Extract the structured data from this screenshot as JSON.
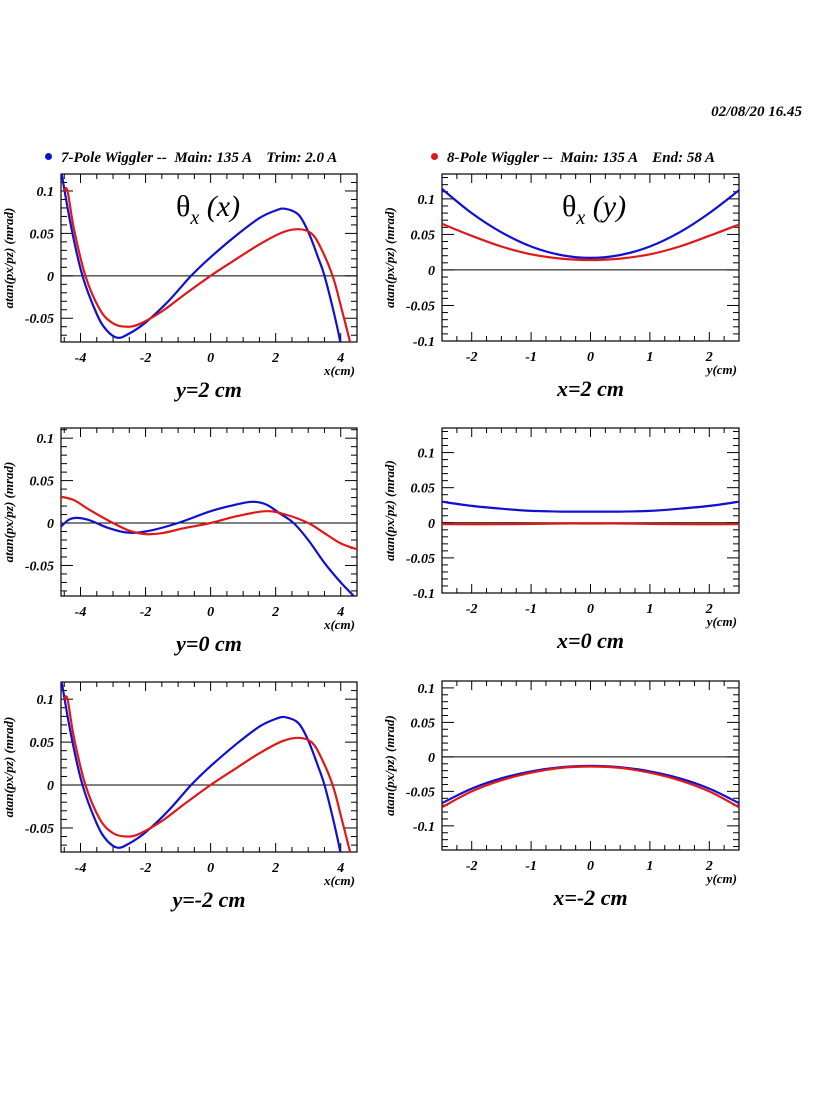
{
  "header": {
    "timestamp": "02/08/20   16.45"
  },
  "legend": [
    {
      "label": "7-Pole Wiggler --  Main: 135 A    Trim: 2.0 A",
      "color": "#1010d0"
    },
    {
      "label": "8-Pole Wiggler --  Main: 135 A    End: 58 A",
      "color": "#e01818"
    }
  ],
  "colors": {
    "seven_pole": "#1010d0",
    "eight_pole": "#e01818",
    "axis": "#000000"
  },
  "chart_data": [
    {
      "type": "line",
      "id": "theta_x_vs_x_y2",
      "title": "θx (x)",
      "caption": "y=2 cm",
      "xlabel": "x(cm)",
      "ylabel": "atan(px/pz) (mrad)",
      "xlim": [
        -4.6,
        4.5
      ],
      "ylim": [
        -0.078,
        0.12
      ],
      "xticks": [
        -4,
        -2,
        0,
        2,
        4
      ],
      "yticks": [
        -0.05,
        0,
        0.05,
        0.1
      ],
      "ytick_labels": [
        "-0.05",
        "0",
        "0.05",
        "0.1"
      ],
      "zero_line": true,
      "series": [
        {
          "name": "7-Pole Wiggler",
          "x": [
            -4.6,
            -4.3,
            -3.94,
            -3.5,
            -3.2,
            -2.86,
            -2.5,
            -2.0,
            -1.3,
            -0.6,
            0,
            0.8,
            1.5,
            2.0,
            2.3,
            2.7,
            3.0,
            3.3,
            3.5,
            3.8,
            4.0
          ],
          "y": [
            0.125,
            0.06,
            0.0,
            -0.045,
            -0.064,
            -0.073,
            -0.068,
            -0.055,
            -0.03,
            0.0,
            0.022,
            0.048,
            0.068,
            0.077,
            0.079,
            0.072,
            0.052,
            0.022,
            0.0,
            -0.045,
            -0.08
          ]
        },
        {
          "name": "8-Pole Wiggler",
          "x": [
            -4.5,
            -4.4,
            -4.2,
            -3.85,
            -3.4,
            -3.0,
            -2.6,
            -2.2,
            -1.5,
            -0.8,
            0,
            0.8,
            1.5,
            2.2,
            2.7,
            3.1,
            3.4,
            3.75,
            4.0,
            4.3
          ],
          "y": [
            0.1,
            0.1,
            0.055,
            0.0,
            -0.04,
            -0.056,
            -0.06,
            -0.057,
            -0.042,
            -0.022,
            0.0,
            0.02,
            0.037,
            0.051,
            0.055,
            0.05,
            0.032,
            0.0,
            -0.035,
            -0.08
          ]
        }
      ]
    },
    {
      "type": "line",
      "id": "theta_x_vs_y_x2",
      "title": "θx (y)",
      "caption": "x=2 cm",
      "xlabel": "y(cm)",
      "ylabel": "atan(px/pz) (mrad)",
      "xlim": [
        -2.5,
        2.5
      ],
      "ylim": [
        -0.1,
        0.135
      ],
      "xticks": [
        -2,
        -1,
        0,
        1,
        2
      ],
      "yticks": [
        -0.1,
        -0.05,
        0,
        0.05,
        0.1
      ],
      "ytick_labels": [
        "-0.1",
        "-0.05",
        "0",
        "0.05",
        "0.1"
      ],
      "zero_line": true,
      "series": [
        {
          "name": "7-Pole Wiggler",
          "x": [
            -2.5,
            -2.0,
            -1.5,
            -1.0,
            -0.5,
            0,
            0.5,
            1.0,
            1.5,
            2.0,
            2.5
          ],
          "y": [
            0.114,
            0.08,
            0.053,
            0.033,
            0.021,
            0.017,
            0.021,
            0.033,
            0.053,
            0.08,
            0.112
          ]
        },
        {
          "name": "8-Pole Wiggler",
          "x": [
            -2.5,
            -2.0,
            -1.5,
            -1.0,
            -0.5,
            0,
            0.5,
            1.0,
            1.5,
            2.0,
            2.5
          ],
          "y": [
            0.065,
            0.048,
            0.033,
            0.022,
            0.016,
            0.014,
            0.016,
            0.022,
            0.033,
            0.048,
            0.064
          ]
        }
      ]
    },
    {
      "type": "line",
      "id": "theta_x_vs_x_y0",
      "title": "",
      "caption": "y=0 cm",
      "xlabel": "x(cm)",
      "ylabel": "atan(px/pz) (mrad)",
      "xlim": [
        -4.6,
        4.5
      ],
      "ylim": [
        -0.086,
        0.112
      ],
      "xticks": [
        -4,
        -2,
        0,
        2,
        4
      ],
      "yticks": [
        -0.05,
        0,
        0.05,
        0.1
      ],
      "ytick_labels": [
        "-0.05",
        "0",
        "0.05",
        "0.1"
      ],
      "zero_line": true,
      "series": [
        {
          "name": "7-Pole Wiggler",
          "x": [
            -4.6,
            -4.35,
            -4.1,
            -3.7,
            -3.2,
            -2.6,
            -2.0,
            -1.0,
            0,
            0.7,
            1.25,
            1.7,
            2.1,
            2.55,
            3.0,
            3.5,
            4.0,
            4.4
          ],
          "y": [
            -0.004,
            0.004,
            0.006,
            0.003,
            -0.005,
            -0.011,
            -0.01,
            0.0,
            0.014,
            0.021,
            0.025,
            0.022,
            0.012,
            0.0,
            -0.02,
            -0.047,
            -0.07,
            -0.086
          ]
        },
        {
          "name": "8-Pole Wiggler",
          "x": [
            -4.6,
            -4.2,
            -3.7,
            -3.0,
            -2.5,
            -2.0,
            -1.5,
            -0.8,
            0,
            0.8,
            1.7,
            2.3,
            3.0,
            3.5,
            4.0,
            4.5
          ],
          "y": [
            0.031,
            0.027,
            0.015,
            0.0,
            -0.009,
            -0.013,
            -0.012,
            -0.006,
            0.0,
            0.008,
            0.014,
            0.01,
            0.0,
            -0.012,
            -0.024,
            -0.031
          ]
        }
      ]
    },
    {
      "type": "line",
      "id": "theta_x_vs_y_x0",
      "title": "",
      "caption": "x=0 cm",
      "xlabel": "y(cm)",
      "ylabel": "atan(px/pz) (mrad)",
      "xlim": [
        -2.5,
        2.5
      ],
      "ylim": [
        -0.1,
        0.135
      ],
      "xticks": [
        -2,
        -1,
        0,
        1,
        2
      ],
      "yticks": [
        -0.1,
        -0.05,
        0,
        0.05,
        0.1
      ],
      "ytick_labels": [
        "-0.1",
        "-0.05",
        "0",
        "0.05",
        "0.1"
      ],
      "zero_line": true,
      "series": [
        {
          "name": "7-Pole Wiggler",
          "x": [
            -2.5,
            -2.0,
            -1.5,
            -1.0,
            -0.5,
            0,
            0.5,
            1.0,
            1.5,
            2.0,
            2.5
          ],
          "y": [
            0.03,
            0.024,
            0.02,
            0.017,
            0.016,
            0.016,
            0.016,
            0.017,
            0.02,
            0.024,
            0.03
          ]
        },
        {
          "name": "8-Pole Wiggler",
          "x": [
            -2.5,
            -1.5,
            -0.5,
            0,
            0.5,
            1.5,
            2.5
          ],
          "y": [
            -0.002,
            -0.002,
            -0.001,
            -0.001,
            -0.001,
            -0.002,
            -0.002
          ]
        }
      ]
    },
    {
      "type": "line",
      "id": "theta_x_vs_x_ym2",
      "title": "",
      "caption": "y=-2 cm",
      "xlabel": "x(cm)",
      "ylabel": "atan(px/pz) (mrad)",
      "xlim": [
        -4.6,
        4.5
      ],
      "ylim": [
        -0.078,
        0.12
      ],
      "xticks": [
        -4,
        -2,
        0,
        2,
        4
      ],
      "yticks": [
        -0.05,
        0,
        0.05,
        0.1
      ],
      "ytick_labels": [
        "-0.05",
        "0",
        "0.05",
        "0.1"
      ],
      "zero_line": true,
      "series": [
        {
          "name": "7-Pole Wiggler",
          "x": [
            -4.6,
            -4.3,
            -3.94,
            -3.5,
            -3.2,
            -2.86,
            -2.5,
            -2.0,
            -1.3,
            -0.6,
            0,
            0.8,
            1.5,
            2.0,
            2.3,
            2.7,
            3.0,
            3.3,
            3.5,
            3.8,
            4.0
          ],
          "y": [
            0.125,
            0.06,
            0.0,
            -0.045,
            -0.064,
            -0.073,
            -0.068,
            -0.055,
            -0.03,
            0.0,
            0.022,
            0.048,
            0.068,
            0.077,
            0.079,
            0.072,
            0.052,
            0.022,
            0.0,
            -0.045,
            -0.08
          ]
        },
        {
          "name": "8-Pole Wiggler",
          "x": [
            -4.5,
            -4.4,
            -4.2,
            -3.85,
            -3.4,
            -3.0,
            -2.6,
            -2.2,
            -1.5,
            -0.8,
            0,
            0.8,
            1.5,
            2.2,
            2.7,
            3.1,
            3.4,
            3.75,
            4.0,
            4.3
          ],
          "y": [
            0.1,
            0.1,
            0.055,
            0.0,
            -0.04,
            -0.056,
            -0.06,
            -0.057,
            -0.042,
            -0.022,
            0.0,
            0.02,
            0.037,
            0.051,
            0.055,
            0.05,
            0.032,
            0.0,
            -0.035,
            -0.08
          ]
        }
      ]
    },
    {
      "type": "line",
      "id": "theta_x_vs_y_xm2",
      "title": "",
      "caption": "x=-2 cm",
      "xlabel": "y(cm)",
      "ylabel": "atan(px/pz) (mrad)",
      "xlim": [
        -2.5,
        2.5
      ],
      "ylim": [
        -0.135,
        0.11
      ],
      "xticks": [
        -2,
        -1,
        0,
        1,
        2
      ],
      "yticks": [
        -0.1,
        -0.05,
        0,
        0.05,
        0.1
      ],
      "ytick_labels": [
        "-0.1",
        "-0.05",
        "0",
        "0.05",
        "0.1"
      ],
      "zero_line": true,
      "series": [
        {
          "name": "7-Pole Wiggler",
          "x": [
            -2.5,
            -2.0,
            -1.5,
            -1.0,
            -0.5,
            0,
            0.5,
            1.0,
            1.5,
            2.0,
            2.5
          ],
          "y": [
            -0.067,
            -0.046,
            -0.031,
            -0.021,
            -0.015,
            -0.013,
            -0.015,
            -0.021,
            -0.031,
            -0.046,
            -0.067
          ]
        },
        {
          "name": "8-Pole Wiggler",
          "x": [
            -2.5,
            -2.0,
            -1.5,
            -1.0,
            -0.5,
            0,
            0.5,
            1.0,
            1.5,
            2.0,
            2.5
          ],
          "y": [
            -0.073,
            -0.05,
            -0.034,
            -0.023,
            -0.016,
            -0.014,
            -0.016,
            -0.023,
            -0.034,
            -0.05,
            -0.073
          ]
        }
      ]
    }
  ]
}
